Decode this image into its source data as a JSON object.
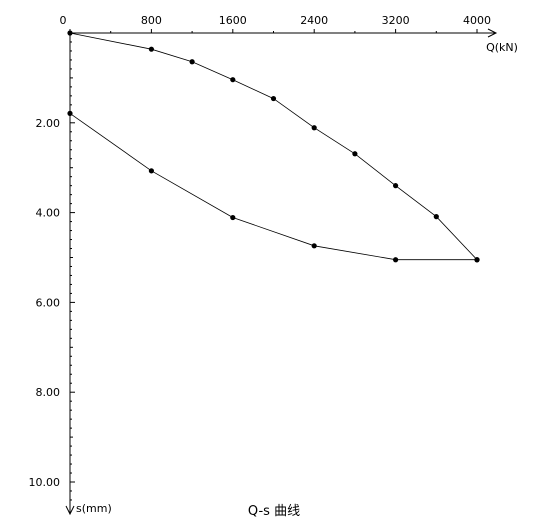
{
  "chart_data": {
    "type": "line",
    "title": "Q-s 曲线",
    "xlabel": "Q(kN)",
    "ylabel": "s(mm)",
    "x_axis_position": "top",
    "y_inverted": true,
    "xlim": [
      0,
      4000
    ],
    "ylim": [
      0,
      10.0
    ],
    "x_ticks": [
      "0",
      "800",
      "1600",
      "2400",
      "3200",
      "4000"
    ],
    "x_tick_values": [
      0,
      800,
      1600,
      2400,
      3200,
      4000
    ],
    "y_ticks": [
      "2.00",
      "4.00",
      "6.00",
      "8.00",
      "10.00"
    ],
    "y_tick_values": [
      2,
      4,
      6,
      8,
      10
    ],
    "grid": false,
    "series": [
      {
        "x": [
          0,
          800,
          1200,
          1600,
          2000,
          2400,
          2800,
          3200,
          3600,
          4000
        ],
        "y": [
          0,
          0.36,
          0.64,
          1.04,
          1.46,
          2.11,
          2.69,
          3.4,
          4.09,
          5.05
        ]
      },
      {
        "x": [
          4000,
          3200,
          2400,
          1600,
          800,
          0
        ],
        "y": [
          5.05,
          5.05,
          4.74,
          4.11,
          3.07,
          1.79
        ]
      }
    ]
  }
}
